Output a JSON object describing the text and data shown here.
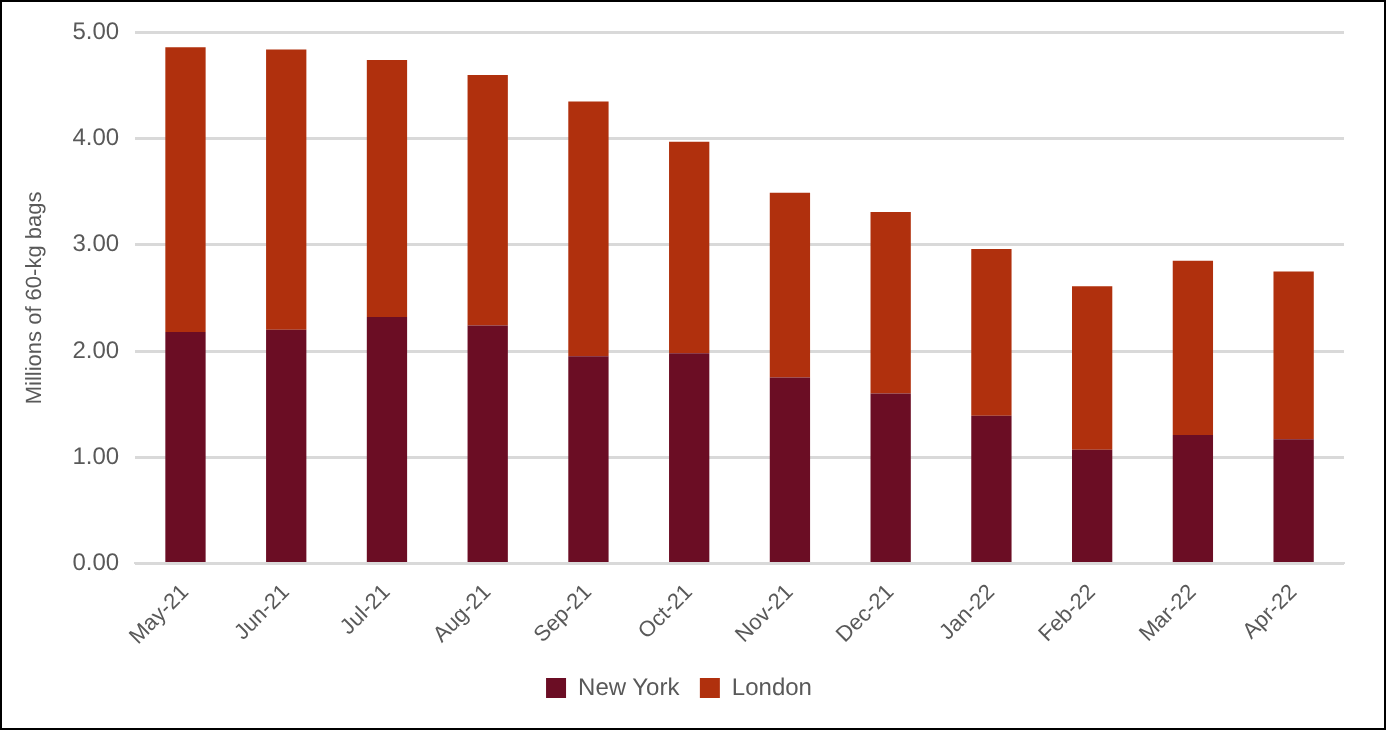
{
  "chart_data": {
    "type": "bar",
    "stacked": true,
    "ylabel": "Millions of 60-kg bags",
    "categories": [
      "May-21",
      "Jun-21",
      "Jul-21",
      "Aug-21",
      "Sep-21",
      "Oct-21",
      "Nov-21",
      "Dec-21",
      "Jan-22",
      "Feb-22",
      "Mar-22",
      "Apr-22"
    ],
    "series": [
      {
        "name": "New York",
        "color": "#6b0d24",
        "values": [
          2.18,
          2.2,
          2.32,
          2.24,
          1.95,
          1.98,
          1.75,
          1.6,
          1.39,
          1.07,
          1.21,
          1.17
        ]
      },
      {
        "name": "London",
        "color": "#b0300d",
        "values": [
          2.68,
          2.64,
          2.42,
          2.36,
          2.4,
          1.99,
          1.74,
          1.71,
          1.57,
          1.54,
          1.64,
          1.58
        ]
      }
    ],
    "ylim": [
      0,
      5
    ],
    "yticks": [
      {
        "value": 0,
        "label": "0.00"
      },
      {
        "value": 1,
        "label": "1.00"
      },
      {
        "value": 2,
        "label": "2.00"
      },
      {
        "value": 3,
        "label": "3.00"
      },
      {
        "value": 4,
        "label": "4.00"
      },
      {
        "value": 5,
        "label": "5.00"
      }
    ],
    "grid": "y",
    "legend": "bottom"
  }
}
